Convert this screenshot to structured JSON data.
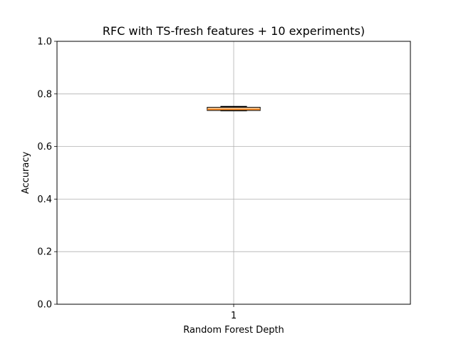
{
  "chart_data": {
    "type": "box",
    "title": "RFC with TS-fresh features + 10 experiments)",
    "xlabel": "Random Forest Depth",
    "ylabel": "Accuracy",
    "categories": [
      "1"
    ],
    "ylim": [
      0.0,
      1.0
    ],
    "yticks": [
      0.0,
      0.2,
      0.4,
      0.6,
      0.8,
      1.0
    ],
    "ytick_labels": [
      "0.0",
      "0.2",
      "0.4",
      "0.6",
      "0.8",
      "1.0"
    ],
    "grid": true,
    "boxes": [
      {
        "category": "1",
        "whisker_low": 0.736,
        "q1": 0.737,
        "median": 0.741,
        "q3": 0.749,
        "whisker_high": 0.752
      }
    ],
    "colors": {
      "box_fill": "#f2c591",
      "median": "#ff7f0e",
      "edge": "#000000",
      "grid": "#b0b0b0"
    }
  }
}
